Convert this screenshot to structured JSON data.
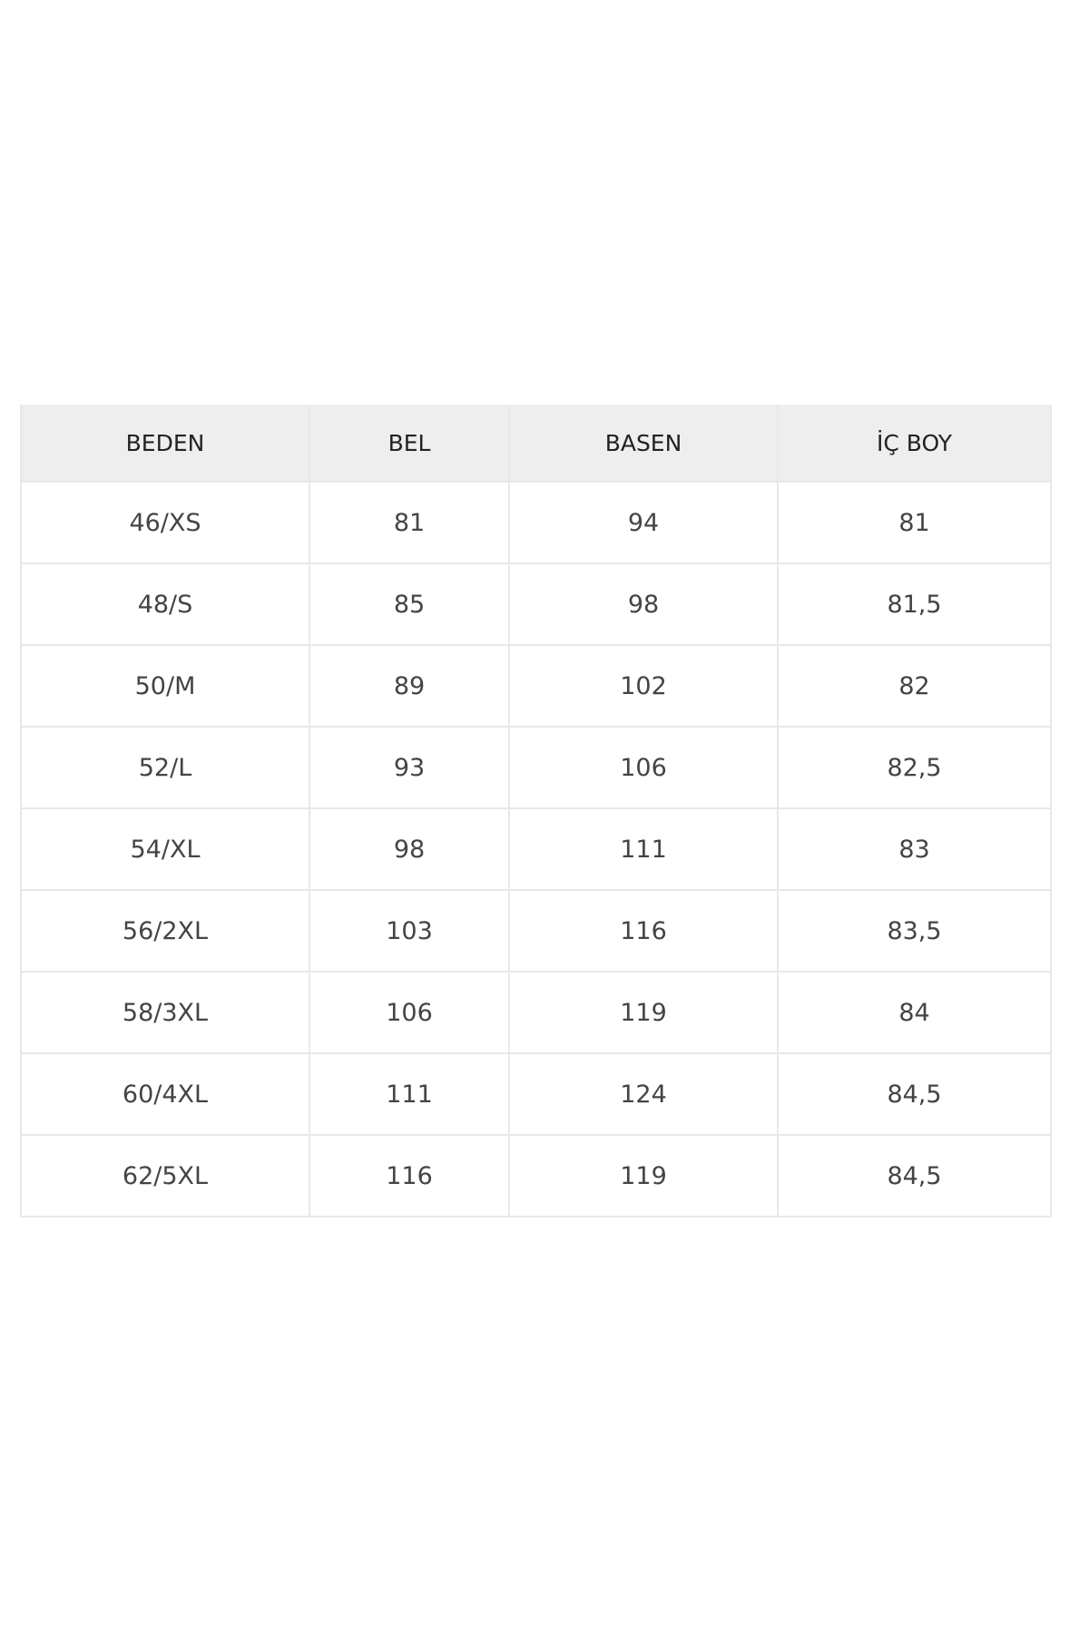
{
  "table": {
    "headers": [
      "BEDEN",
      "BEL",
      "BASEN",
      "İÇ BOY"
    ],
    "rows": [
      [
        "46/XS",
        "81",
        "94",
        "81"
      ],
      [
        "48/S",
        "85",
        "98",
        "81,5"
      ],
      [
        "50/M",
        "89",
        "102",
        "82"
      ],
      [
        "52/L",
        "93",
        "106",
        "82,5"
      ],
      [
        "54/XL",
        "98",
        "111",
        "83"
      ],
      [
        "56/2XL",
        "103",
        "116",
        "83,5"
      ],
      [
        "58/3XL",
        "106",
        "119",
        "84"
      ],
      [
        "60/4XL",
        "111",
        "124",
        "84,5"
      ],
      [
        "62/5XL",
        "116",
        "119",
        "84,5"
      ]
    ]
  }
}
